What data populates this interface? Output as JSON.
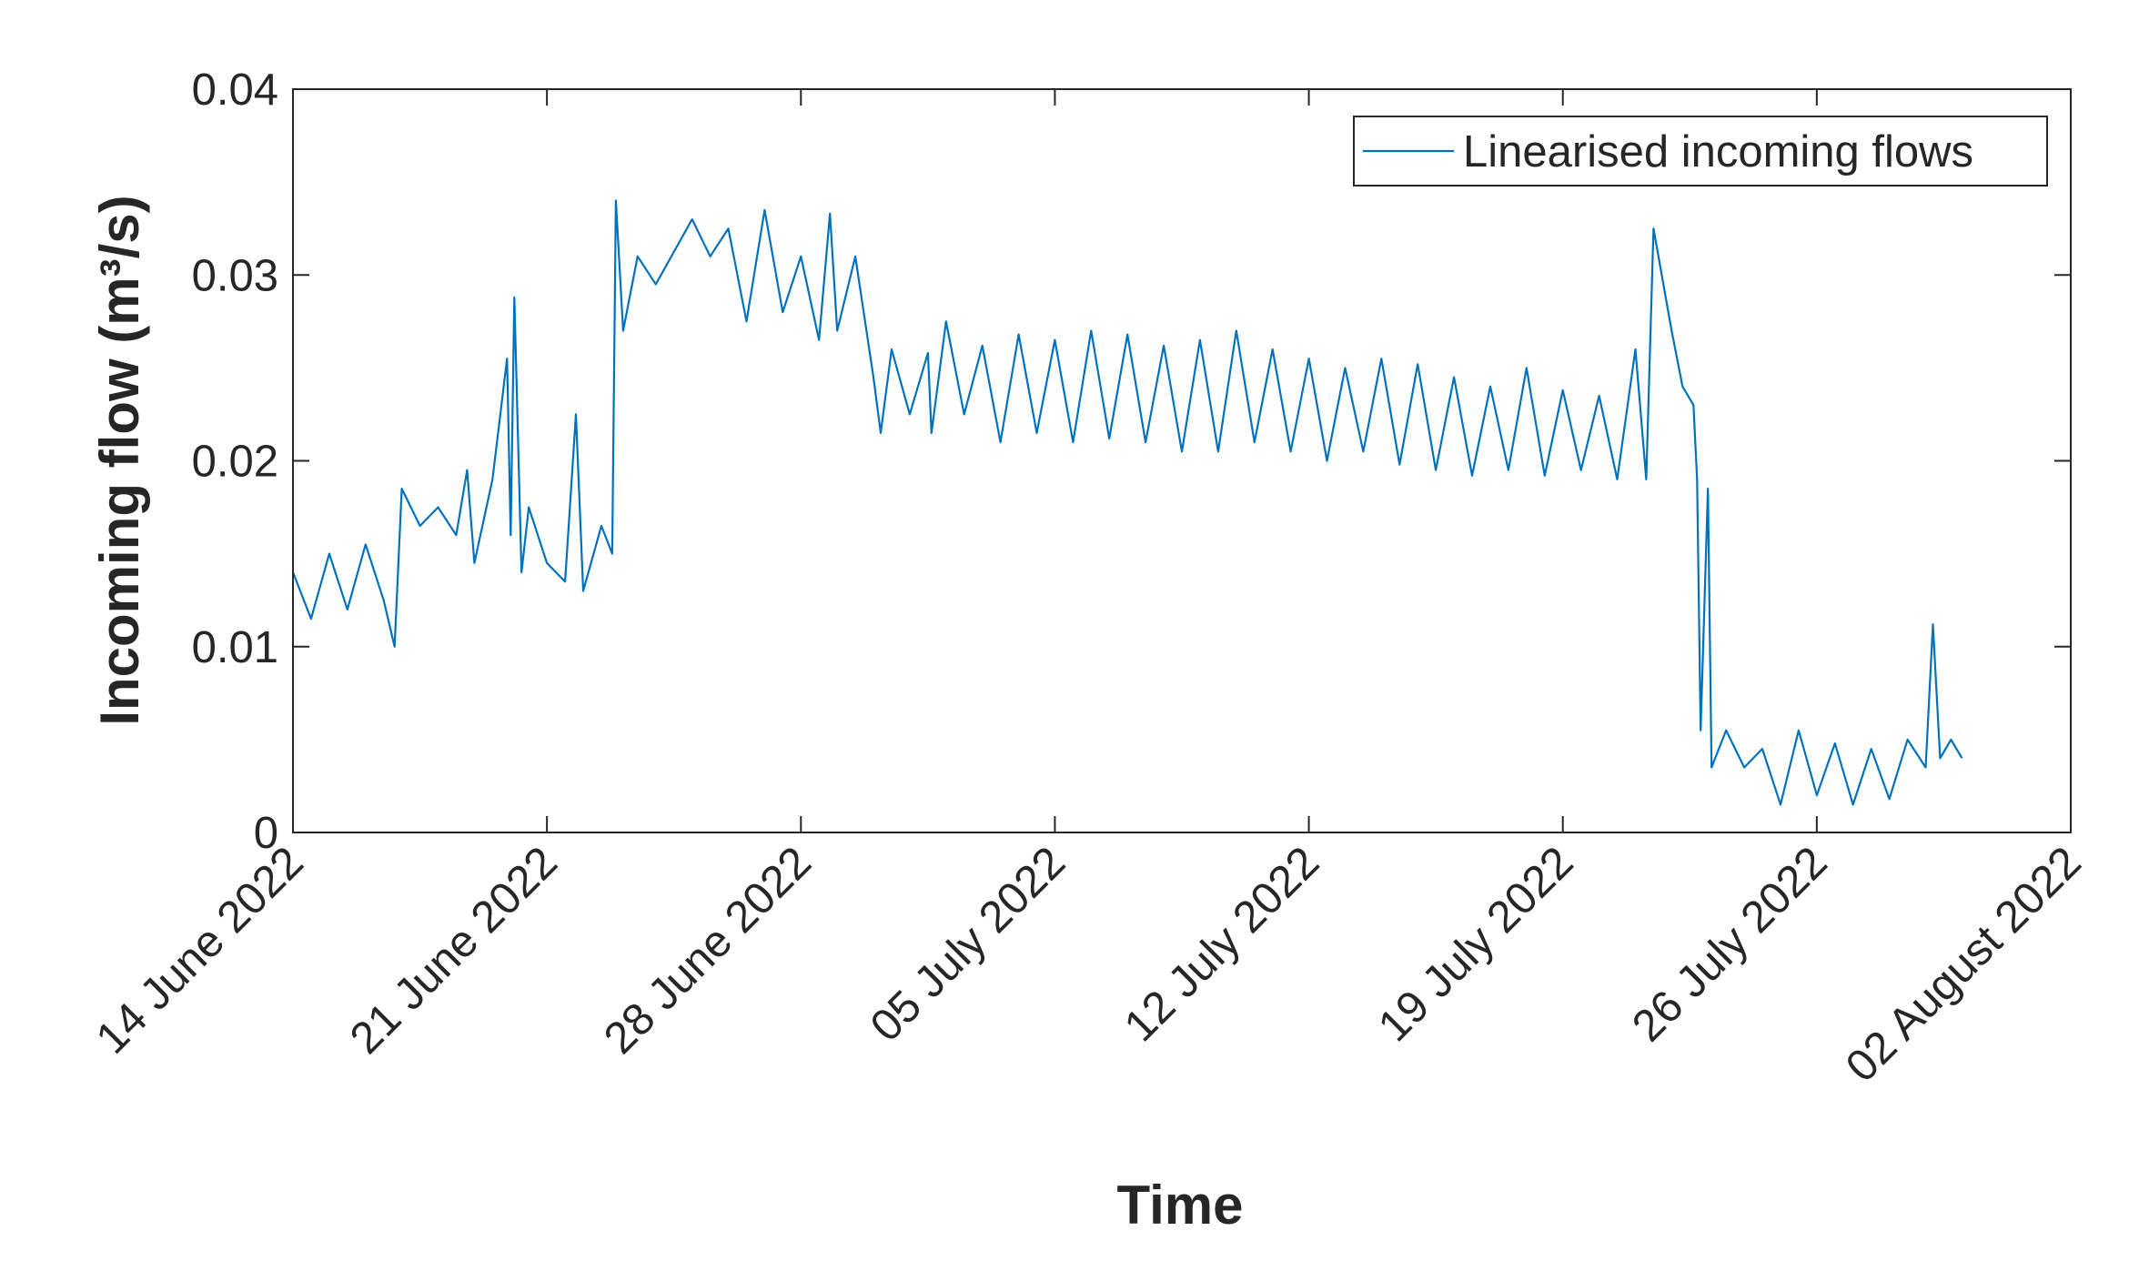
{
  "chart_data": {
    "type": "line",
    "xlabel": "Time",
    "ylabel": "Incoming flow (m³/s)",
    "x": [
      0,
      0.5,
      1,
      1.5,
      2,
      2.5,
      2.8,
      3,
      3.5,
      4,
      4.5,
      4.8,
      5,
      5.5,
      5.9,
      6.0,
      6.1,
      6.3,
      6.5,
      7,
      7.5,
      7.8,
      8,
      8.5,
      8.8,
      8.9,
      9.1,
      9.5,
      10,
      11,
      11.5,
      12,
      12.5,
      13,
      13.5,
      14,
      14.5,
      14.8,
      15,
      15.5,
      16,
      16.2,
      16.5,
      17,
      17.5,
      17.6,
      18,
      18.5,
      19,
      19.5,
      20,
      20.5,
      21,
      21.5,
      22,
      22.5,
      23,
      23.5,
      24,
      24.5,
      25,
      25.5,
      26,
      26.5,
      27,
      27.5,
      28,
      28.5,
      29,
      29.5,
      30,
      30.5,
      31,
      31.5,
      32,
      32.5,
      33,
      33.5,
      34,
      34.5,
      35,
      35.5,
      36,
      36.5,
      37,
      37.3,
      37.5,
      38,
      38.3,
      38.6,
      38.7,
      38.8,
      39,
      39.1,
      39.5,
      40,
      40.5,
      41,
      41.5,
      42,
      42.5,
      43,
      43.5,
      44,
      44.5,
      45,
      45.2,
      45.4,
      45.7,
      46
    ],
    "series": [
      {
        "name": "Linearised incoming flows",
        "color": "#0072bd",
        "values": [
          0.014,
          0.0115,
          0.015,
          0.012,
          0.0155,
          0.0125,
          0.01,
          0.0185,
          0.0165,
          0.0175,
          0.016,
          0.0195,
          0.0145,
          0.019,
          0.0255,
          0.016,
          0.0288,
          0.014,
          0.0175,
          0.0145,
          0.0135,
          0.0225,
          0.013,
          0.0165,
          0.015,
          0.034,
          0.027,
          0.031,
          0.0295,
          0.033,
          0.031,
          0.0325,
          0.0275,
          0.0335,
          0.028,
          0.031,
          0.0265,
          0.0333,
          0.027,
          0.031,
          0.0245,
          0.0215,
          0.026,
          0.0225,
          0.0258,
          0.0215,
          0.0275,
          0.0225,
          0.0262,
          0.021,
          0.0268,
          0.0215,
          0.0265,
          0.021,
          0.027,
          0.0212,
          0.0268,
          0.021,
          0.0262,
          0.0205,
          0.0265,
          0.0205,
          0.027,
          0.021,
          0.026,
          0.0205,
          0.0255,
          0.02,
          0.025,
          0.0205,
          0.0255,
          0.0198,
          0.0252,
          0.0195,
          0.0245,
          0.0192,
          0.024,
          0.0195,
          0.025,
          0.0192,
          0.0238,
          0.0195,
          0.0235,
          0.019,
          0.026,
          0.019,
          0.0325,
          0.027,
          0.024,
          0.023,
          0.019,
          0.0055,
          0.0185,
          0.0035,
          0.0055,
          0.0035,
          0.0045,
          0.0015,
          0.0055,
          0.002,
          0.0048,
          0.0015,
          0.0045,
          0.0018,
          0.005,
          0.0035,
          0.0112,
          0.004,
          0.005,
          0.004
        ]
      }
    ],
    "xlim": [
      0,
      49
    ],
    "xticks": [
      {
        "value": 0,
        "label": "14 June 2022"
      },
      {
        "value": 7,
        "label": "21 June 2022"
      },
      {
        "value": 14,
        "label": "28 June 2022"
      },
      {
        "value": 21,
        "label": "05 July 2022"
      },
      {
        "value": 28,
        "label": "12 July 2022"
      },
      {
        "value": 35,
        "label": "19 July 2022"
      },
      {
        "value": 42,
        "label": "26 July 2022"
      },
      {
        "value": 49,
        "label": "02 August 2022"
      }
    ],
    "ylim": [
      0,
      0.04
    ],
    "yticks": [
      0,
      0.01,
      0.02,
      0.03,
      0.04
    ],
    "legend": "upper right"
  }
}
